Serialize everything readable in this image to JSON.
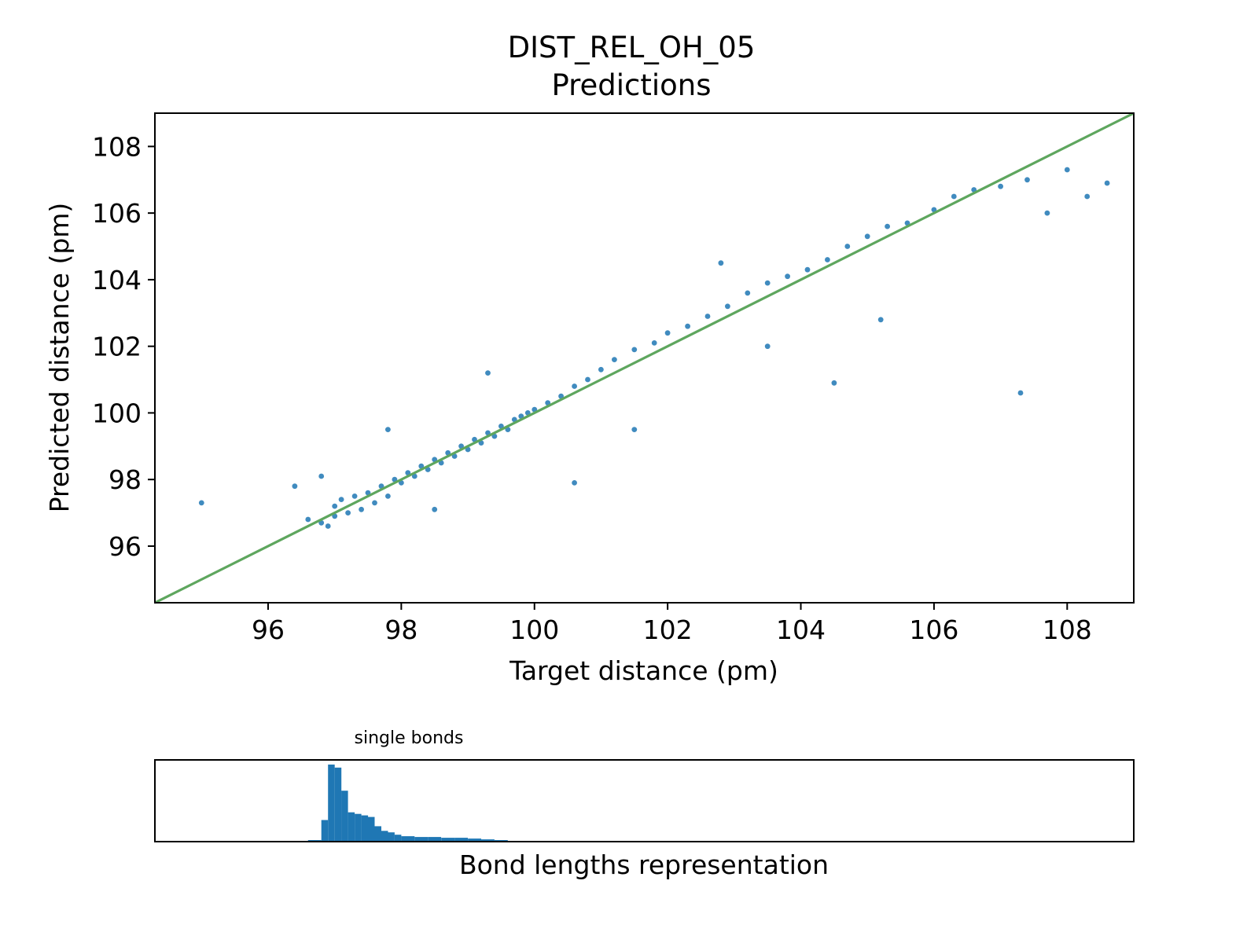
{
  "figure": {
    "title_line1": "DIST_REL_OH_05",
    "title_line2": "Predictions"
  },
  "colors": {
    "scatter": "#1f77b4",
    "identity_line": "#5ea65e",
    "histogram": "#1f77b4",
    "axes": "#000000"
  },
  "chart_data": [
    {
      "type": "scatter",
      "title": "DIST_REL_OH_05 Predictions",
      "xlabel": "Target distance (pm)",
      "ylabel": "Predicted distance (pm)",
      "xlim": [
        94.3,
        109.0
      ],
      "ylim": [
        94.3,
        109.0
      ],
      "xticks": [
        96,
        98,
        100,
        102,
        104,
        106,
        108
      ],
      "yticks": [
        96,
        98,
        100,
        102,
        104,
        106,
        108
      ],
      "grid": false,
      "identity_line": {
        "from": [
          94.3,
          94.3
        ],
        "to": [
          109.0,
          109.0
        ]
      },
      "series": [
        {
          "points": [
            [
              95.0,
              97.3
            ],
            [
              96.4,
              97.8
            ],
            [
              96.6,
              96.8
            ],
            [
              96.8,
              96.7
            ],
            [
              96.9,
              96.6
            ],
            [
              97.0,
              97.2
            ],
            [
              97.0,
              96.9
            ],
            [
              97.1,
              97.4
            ],
            [
              97.2,
              97.0
            ],
            [
              97.3,
              97.5
            ],
            [
              97.4,
              97.1
            ],
            [
              97.5,
              97.6
            ],
            [
              97.6,
              97.3
            ],
            [
              97.7,
              97.8
            ],
            [
              97.8,
              97.5
            ],
            [
              97.9,
              98.0
            ],
            [
              98.0,
              97.9
            ],
            [
              98.1,
              98.2
            ],
            [
              98.2,
              98.1
            ],
            [
              98.3,
              98.4
            ],
            [
              98.4,
              98.3
            ],
            [
              98.5,
              98.6
            ],
            [
              98.6,
              98.5
            ],
            [
              98.7,
              98.8
            ],
            [
              98.8,
              98.7
            ],
            [
              98.9,
              99.0
            ],
            [
              99.0,
              98.9
            ],
            [
              99.1,
              99.2
            ],
            [
              99.2,
              99.1
            ],
            [
              99.3,
              99.4
            ],
            [
              99.4,
              99.3
            ],
            [
              99.5,
              99.6
            ],
            [
              99.6,
              99.5
            ],
            [
              99.7,
              99.8
            ],
            [
              99.8,
              99.9
            ],
            [
              99.9,
              100.0
            ],
            [
              100.0,
              100.1
            ],
            [
              100.2,
              100.3
            ],
            [
              100.4,
              100.5
            ],
            [
              100.6,
              100.8
            ],
            [
              100.8,
              101.0
            ],
            [
              101.0,
              101.3
            ],
            [
              101.2,
              101.6
            ],
            [
              101.5,
              101.9
            ],
            [
              101.8,
              102.1
            ],
            [
              102.0,
              102.4
            ],
            [
              102.3,
              102.6
            ],
            [
              102.6,
              102.9
            ],
            [
              102.9,
              103.2
            ],
            [
              103.2,
              103.6
            ],
            [
              103.5,
              103.9
            ],
            [
              103.8,
              104.1
            ],
            [
              104.1,
              104.3
            ],
            [
              104.4,
              104.6
            ],
            [
              104.7,
              105.0
            ],
            [
              105.0,
              105.3
            ],
            [
              105.3,
              105.6
            ],
            [
              105.6,
              105.7
            ],
            [
              106.0,
              106.1
            ],
            [
              106.3,
              106.5
            ],
            [
              106.6,
              106.7
            ],
            [
              107.0,
              106.8
            ],
            [
              107.4,
              107.0
            ],
            [
              107.7,
              106.0
            ],
            [
              108.0,
              107.3
            ],
            [
              108.3,
              106.5
            ],
            [
              108.6,
              106.9
            ],
            [
              103.5,
              102.0
            ],
            [
              104.5,
              100.9
            ],
            [
              105.2,
              102.8
            ],
            [
              107.3,
              100.6
            ],
            [
              102.8,
              104.5
            ],
            [
              101.5,
              99.5
            ],
            [
              100.6,
              97.9
            ],
            [
              97.8,
              99.5
            ],
            [
              96.8,
              98.1
            ],
            [
              98.5,
              97.1
            ],
            [
              99.3,
              101.2
            ]
          ]
        }
      ]
    },
    {
      "type": "bar",
      "title": "single bonds",
      "xlabel": "Bond lengths representation",
      "ylabel": "",
      "xlim": [
        94.3,
        109.0
      ],
      "ylim": [
        0,
        1.06
      ],
      "bin_width": 0.2,
      "bins": [
        {
          "x": 96.6,
          "height": 0.02
        },
        {
          "x": 96.8,
          "height": 0.28
        },
        {
          "x": 96.9,
          "height": 1.0
        },
        {
          "x": 97.0,
          "height": 0.96
        },
        {
          "x": 97.1,
          "height": 0.66
        },
        {
          "x": 97.2,
          "height": 0.38
        },
        {
          "x": 97.3,
          "height": 0.36
        },
        {
          "x": 97.4,
          "height": 0.34
        },
        {
          "x": 97.5,
          "height": 0.32
        },
        {
          "x": 97.6,
          "height": 0.2
        },
        {
          "x": 97.7,
          "height": 0.14
        },
        {
          "x": 97.8,
          "height": 0.12
        },
        {
          "x": 97.9,
          "height": 0.09
        },
        {
          "x": 98.0,
          "height": 0.07
        },
        {
          "x": 98.2,
          "height": 0.06
        },
        {
          "x": 98.4,
          "height": 0.06
        },
        {
          "x": 98.6,
          "height": 0.05
        },
        {
          "x": 98.8,
          "height": 0.05
        },
        {
          "x": 99.0,
          "height": 0.04
        },
        {
          "x": 99.2,
          "height": 0.03
        },
        {
          "x": 99.4,
          "height": 0.02
        },
        {
          "x": 99.6,
          "height": 0.01
        }
      ]
    }
  ]
}
